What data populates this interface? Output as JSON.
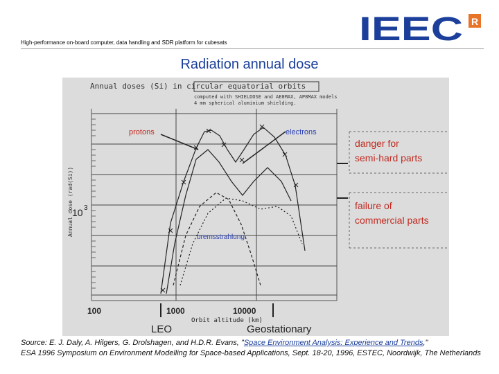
{
  "header": {
    "subtitle": "High-performance on-board computer, data handling and SDR platform for cubesats",
    "logo_text": "IEEC",
    "logo_mark": "R",
    "brand_color": "#1b3f9a",
    "accent_color": "#e8742a"
  },
  "slide": {
    "title": "Radiation annual dose"
  },
  "figure": {
    "chart_title": "Annual doses (Si) in circular equatorial orbits",
    "note_line1": "computed with SHIELDOSE and AE8MAX, AP8MAX models",
    "note_line2": "4 mm spherical aluminium shielding.",
    "y_label": "Annual dose (rad(Si))",
    "y_mid_label": "10",
    "y_mid_exp": "3",
    "x_title": "Orbit altitude (km)",
    "x_ticks": [
      "100",
      "1000",
      "10000"
    ],
    "label_protons": "protons",
    "label_electrons": "electrons",
    "label_brems": "bremsstrahlung",
    "danger_line1": "danger  for",
    "danger_line2": "semi-hard  parts",
    "failure_line1": "failure  of",
    "failure_line2": "commercial  parts",
    "label_leo": "LEO",
    "label_geo": "Geostationary",
    "colors": {
      "background": "#dcdcdc",
      "annotation_red": "#c02a20",
      "annotation_blue": "#2a3fb0",
      "curve": "#222222"
    }
  },
  "caption": {
    "prefix": "Source: E. J. Daly, A. Hilgers, G. Drolshagen, and H.D.R. Evans, \"",
    "link_text": "Space Environment Analysis: Experience and Trends",
    "suffix": ",\"",
    "line2": "ESA 1996 Symposium on Environment Modelling for Space-based Applications, Sept. 18-20, 1996, ESTEC, Noordwijk, The Netherlands"
  }
}
